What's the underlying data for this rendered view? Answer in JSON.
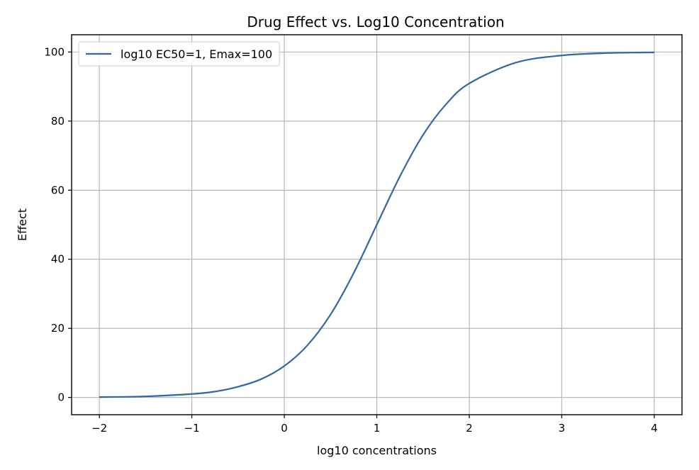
{
  "chart_data": {
    "type": "line",
    "title": "Drug Effect vs. Log10 Concentration",
    "xlabel": "log10 concentrations",
    "ylabel": "Effect",
    "xlim": [
      -2.3,
      4.3
    ],
    "ylim": [
      -5,
      105
    ],
    "xticks": [
      -2,
      -1,
      0,
      1,
      2,
      3,
      4
    ],
    "xtick_labels": [
      "−2",
      "−1",
      "0",
      "1",
      "2",
      "3",
      "4"
    ],
    "yticks": [
      0,
      20,
      40,
      60,
      80,
      100
    ],
    "ytick_labels": [
      "0",
      "20",
      "40",
      "60",
      "80",
      "100"
    ],
    "grid": true,
    "legend_position": "top-left",
    "series": [
      {
        "name": "log10 EC50=1, Emax=100",
        "color": "#3465a4",
        "x": [
          -2.0,
          -1.5,
          -1.0,
          -0.75,
          -0.5,
          -0.25,
          0.0,
          0.25,
          0.5,
          0.75,
          1.0,
          1.25,
          1.5,
          1.75,
          2.0,
          2.5,
          3.0,
          3.5,
          4.0
        ],
        "y": [
          0.1,
          0.3,
          1.0,
          1.7,
          3.1,
          5.3,
          9.1,
          15.1,
          24.0,
          36.0,
          50.0,
          64.0,
          76.0,
          84.9,
          90.9,
          96.9,
          99.0,
          99.7,
          99.9
        ]
      }
    ]
  }
}
